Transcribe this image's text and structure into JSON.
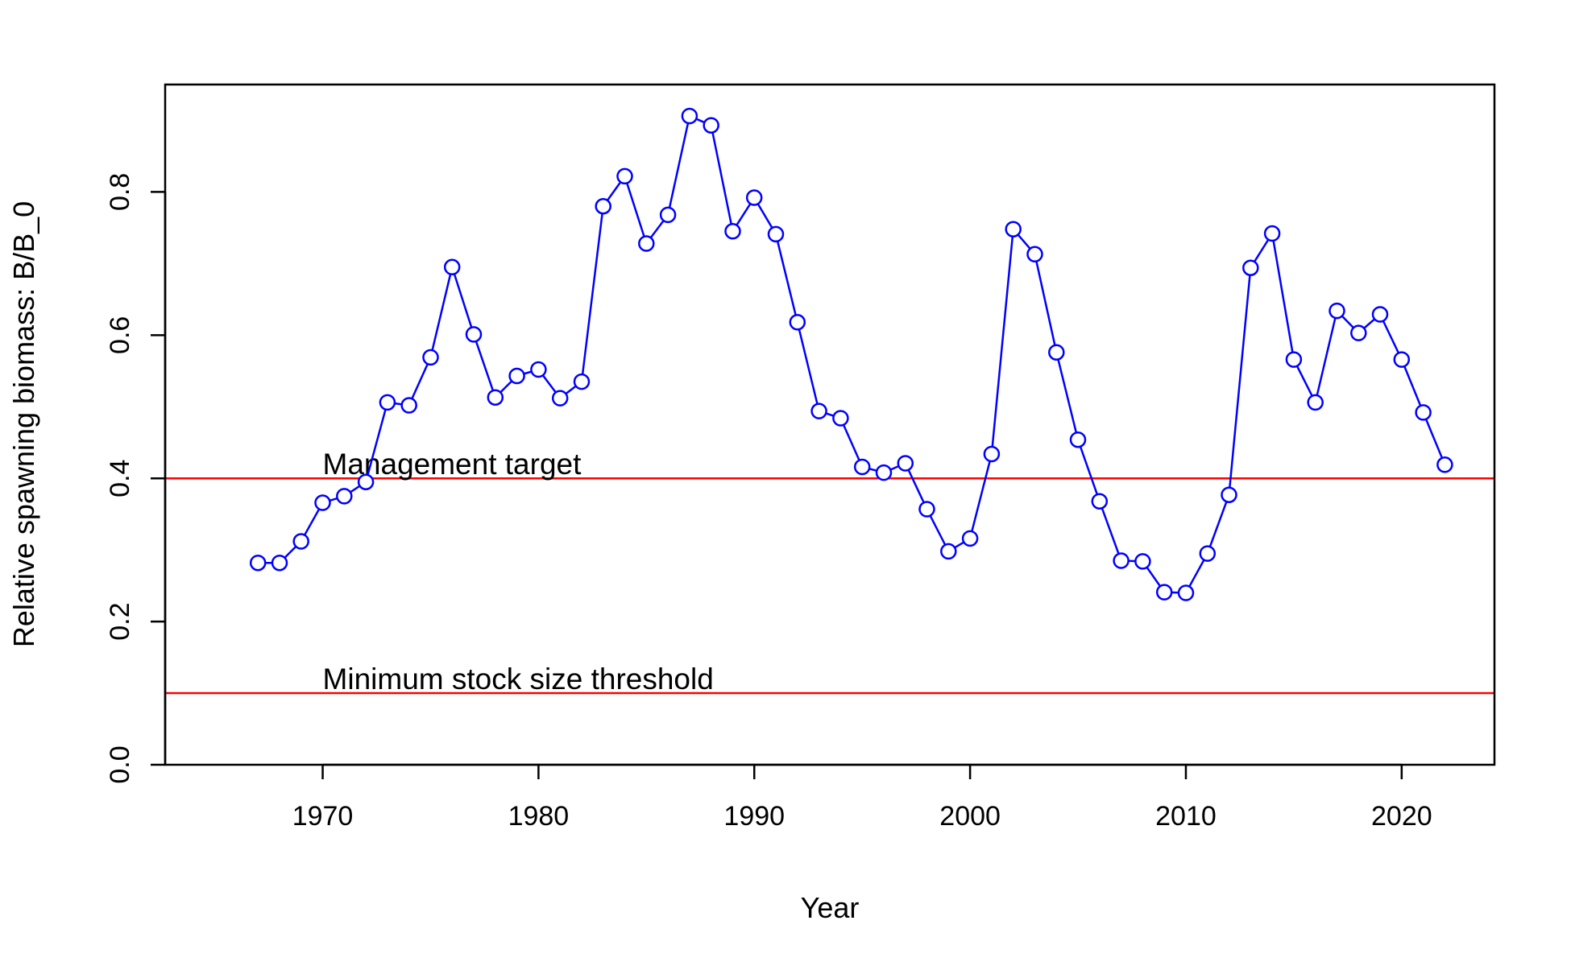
{
  "chart_data": {
    "type": "line",
    "title": "",
    "xlabel": "Year",
    "ylabel": "Relative spawning biomass: B/B_0",
    "xlim": [
      1962.7,
      2024.3
    ],
    "ylim": [
      0.0,
      0.95
    ],
    "x_ticks": [
      1970,
      1980,
      1990,
      2000,
      2010,
      2020
    ],
    "y_ticks": [
      0.0,
      0.2,
      0.4,
      0.6,
      0.8
    ],
    "y_tick_labels": [
      "0.0",
      "0.2",
      "0.4",
      "0.6",
      "0.8"
    ],
    "grid": false,
    "series": [
      {
        "color": "#0000ff",
        "marker": "open-circle",
        "x": [
          1967,
          1968,
          1969,
          1970,
          1971,
          1972,
          1973,
          1974,
          1975,
          1976,
          1977,
          1978,
          1979,
          1980,
          1981,
          1982,
          1983,
          1984,
          1985,
          1986,
          1987,
          1988,
          1989,
          1990,
          1991,
          1992,
          1993,
          1994,
          1995,
          1996,
          1997,
          1998,
          1999,
          2000,
          2001,
          2002,
          2003,
          2004,
          2005,
          2006,
          2007,
          2008,
          2009,
          2010,
          2011,
          2012,
          2013,
          2014,
          2015,
          2016,
          2017,
          2018,
          2019,
          2020,
          2021,
          2022
        ],
        "y": [
          0.282,
          0.282,
          0.312,
          0.366,
          0.375,
          0.395,
          0.506,
          0.502,
          0.569,
          0.695,
          0.601,
          0.513,
          0.543,
          0.552,
          0.512,
          0.535,
          0.78,
          0.822,
          0.728,
          0.768,
          0.906,
          0.893,
          0.745,
          0.792,
          0.741,
          0.618,
          0.494,
          0.484,
          0.416,
          0.408,
          0.421,
          0.357,
          0.298,
          0.316,
          0.434,
          0.748,
          0.713,
          0.576,
          0.454,
          0.368,
          0.285,
          0.284,
          0.241,
          0.24,
          0.295,
          0.377,
          0.694,
          0.742,
          0.566,
          0.506,
          0.634,
          0.603,
          0.629,
          0.566,
          0.492,
          0.419
        ]
      }
    ],
    "reference_lines": [
      {
        "y": 0.4,
        "color": "#ff0000",
        "label": "Management target",
        "label_x": 1970
      },
      {
        "y": 0.1,
        "color": "#ff0000",
        "label": "Minimum stock size threshold",
        "label_x": 1970
      }
    ]
  }
}
